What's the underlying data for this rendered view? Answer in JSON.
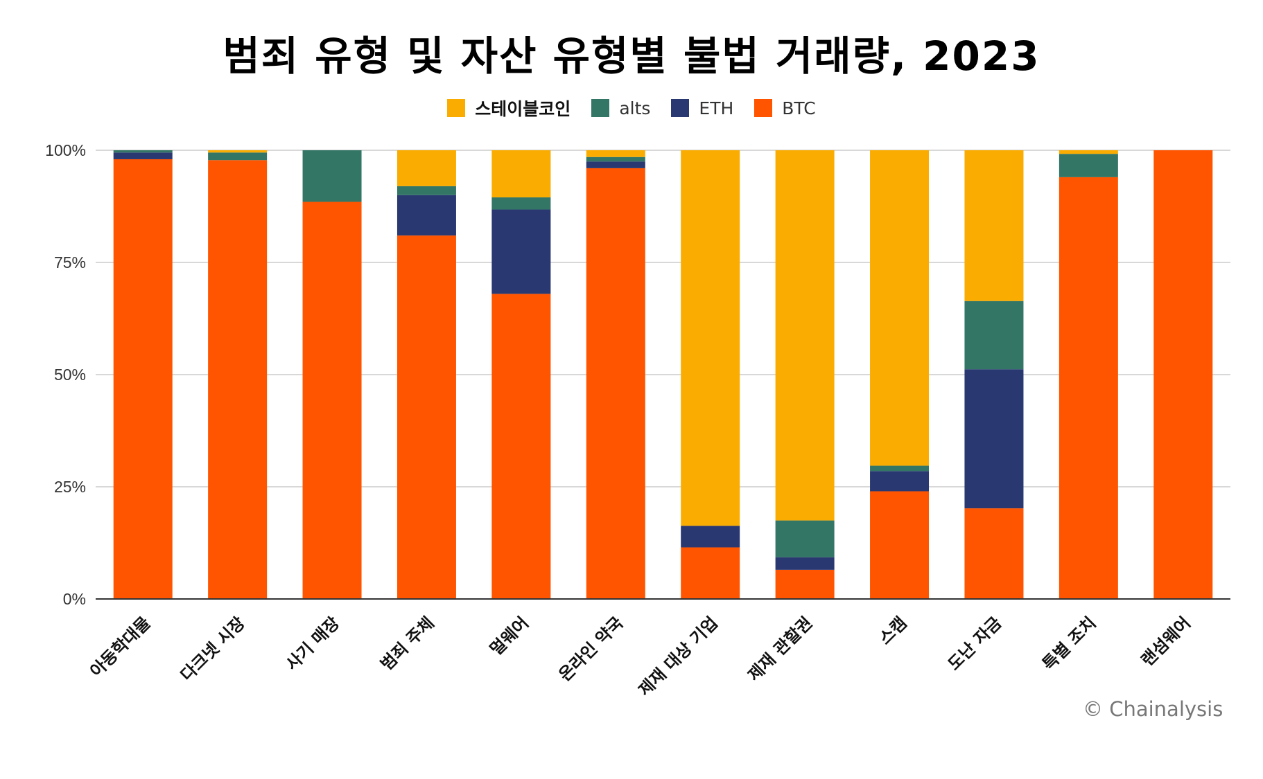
{
  "chart_data": {
    "type": "bar",
    "stacked": true,
    "title": "범죄 유형 및 자산 유형별 불법 거래량, 2023",
    "xlabel": "",
    "ylabel": "",
    "ylim": [
      0,
      100
    ],
    "y_ticks": [
      "0%",
      "25%",
      "50%",
      "75%",
      "100%"
    ],
    "grid": true,
    "legend_position": "top-center",
    "categories": [
      "아동학대물",
      "다크넷 시장",
      "사기 매장",
      "범죄 주체",
      "멀웨어",
      "온라인 약국",
      "제재 대상 기업",
      "제재 관할권",
      "스캠",
      "도난 자금",
      "특별 조치",
      "랜섬웨어"
    ],
    "series": [
      {
        "name": "BTC",
        "color": "#ff5500",
        "values": [
          98,
          97.8,
          88.5,
          81,
          68,
          96,
          11.5,
          6.5,
          24,
          20.2,
          94,
          100
        ]
      },
      {
        "name": "ETH",
        "color": "#293871",
        "values": [
          1.5,
          0,
          0,
          9,
          18.8,
          1.5,
          4.8,
          2.8,
          4.5,
          31,
          0,
          0
        ]
      },
      {
        "name": "alts",
        "color": "#337666",
        "values": [
          0.5,
          1.7,
          11.5,
          2,
          2.7,
          1,
          0,
          8.2,
          1.2,
          15.2,
          5.2,
          0
        ]
      },
      {
        "name": "스테이블코인",
        "color": "#fbac00",
        "values": [
          0,
          0.5,
          0,
          8,
          10.5,
          1.5,
          83.7,
          82.5,
          70.3,
          33.6,
          0.8,
          0
        ]
      }
    ],
    "legend_order": [
      "스테이블코인",
      "alts",
      "ETH",
      "BTC"
    ]
  },
  "credit": "© Chainalysis"
}
